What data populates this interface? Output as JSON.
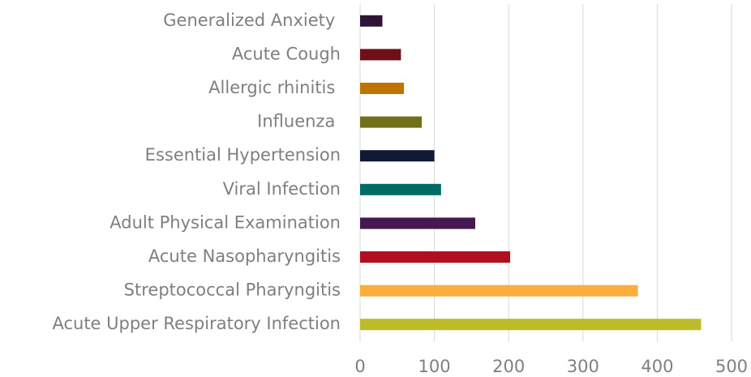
{
  "chart_data": {
    "type": "bar",
    "orientation": "horizontal",
    "categories": [
      "Generalized Anxiety ",
      "Acute Cough",
      "Allergic rhinitis ",
      "Influenza ",
      "Essential Hypertension",
      "Viral Infection",
      "Adult Physical Examination",
      "Acute Nasopharyngitis",
      "Streptococcal Pharyngitis",
      "Acute Upper Respiratory Infection"
    ],
    "values": [
      30,
      55,
      59,
      83,
      100,
      109,
      155,
      202,
      374,
      459
    ],
    "colors": [
      "#2e1437",
      "#6e0f1a",
      "#c07400",
      "#707018",
      "#0e1a36",
      "#006a64",
      "#45194f",
      "#b10e20",
      "#fbae3c",
      "#bcbc28"
    ],
    "xlim": [
      0,
      500
    ],
    "xticks": [
      0,
      100,
      200,
      300,
      400,
      500
    ],
    "grid": true
  }
}
